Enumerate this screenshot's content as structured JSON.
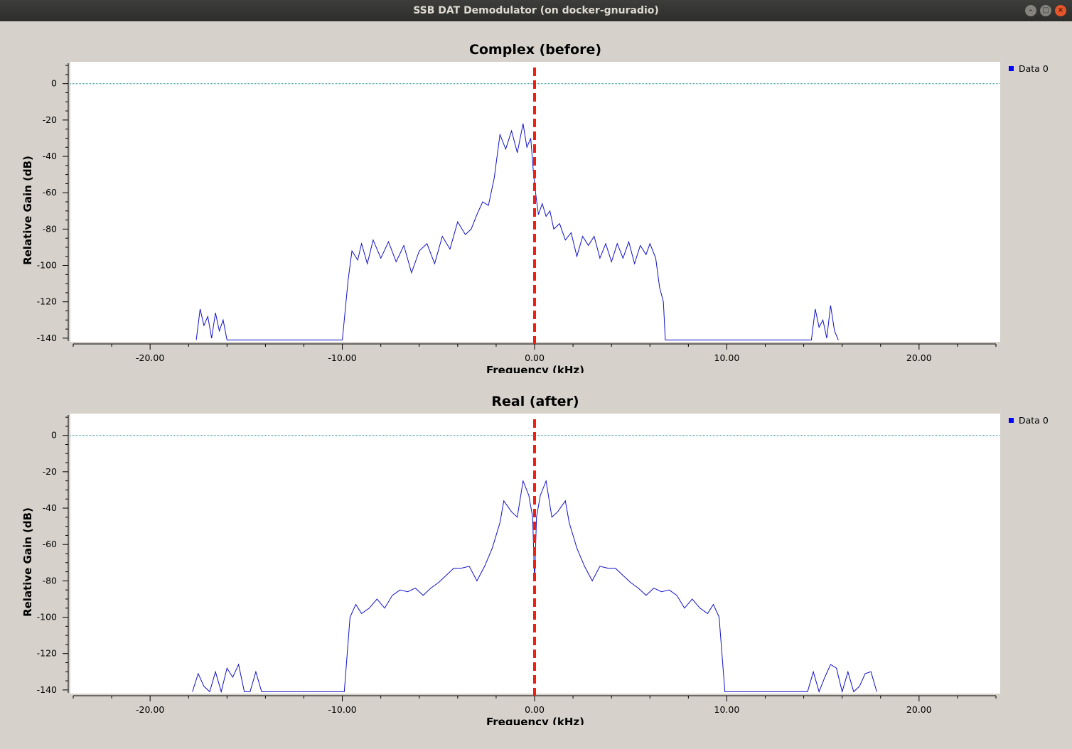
{
  "window": {
    "title": "SSB DAT Demodulator (on docker-gnuradio)",
    "controls": {
      "minimize": "–",
      "maximize": "□",
      "close": "×"
    }
  },
  "colors": {
    "trace": "#1010c8",
    "marker": "#f02010",
    "reference": "#1a8a8a",
    "legend_swatch": "#0000ff"
  },
  "chart_data": [
    {
      "type": "line",
      "title": "Complex (before)",
      "xlabel": "Frequency (kHz)",
      "ylabel": "Relative Gain (dB)",
      "xlim": [
        -24,
        24
      ],
      "ylim": [
        -142,
        12
      ],
      "xticks": [
        "-20.00",
        "-10.00",
        "0.00",
        "10.00",
        "20.00"
      ],
      "yticks": [
        "0",
        "-20",
        "-40",
        "-60",
        "-80",
        "-100",
        "-120",
        "-140"
      ],
      "legend": [
        "Data 0"
      ],
      "reference_line_db": 0,
      "marker_khz": 0,
      "series": [
        {
          "name": "Data 0",
          "x": [
            -17.6,
            -17.4,
            -17.2,
            -17.0,
            -16.8,
            -16.6,
            -16.4,
            -16.2,
            -16.0,
            -10.0,
            -9.7,
            -9.5,
            -9.2,
            -9.0,
            -8.7,
            -8.4,
            -8.0,
            -7.6,
            -7.2,
            -6.8,
            -6.4,
            -6.0,
            -5.6,
            -5.2,
            -4.8,
            -4.4,
            -4.0,
            -3.6,
            -3.3,
            -3.0,
            -2.7,
            -2.4,
            -2.1,
            -1.8,
            -1.5,
            -1.2,
            -0.9,
            -0.6,
            -0.4,
            -0.2,
            -0.05,
            0.05,
            0.2,
            0.4,
            0.6,
            0.8,
            1.0,
            1.3,
            1.6,
            1.9,
            2.2,
            2.5,
            2.8,
            3.1,
            3.4,
            3.7,
            4.0,
            4.3,
            4.6,
            4.9,
            5.2,
            5.5,
            5.8,
            6.0,
            6.3,
            6.5,
            6.7,
            6.8,
            14.4,
            14.6,
            14.8,
            15.0,
            15.2,
            15.4,
            15.6,
            15.8
          ],
          "y": [
            -141,
            -124,
            -133,
            -128,
            -140,
            -126,
            -136,
            -130,
            -141,
            -141,
            -108,
            -92,
            -97,
            -88,
            -99,
            -86,
            -96,
            -87,
            -98,
            -89,
            -104,
            -92,
            -88,
            -99,
            -84,
            -91,
            -76,
            -83,
            -80,
            -72,
            -65,
            -67,
            -52,
            -28,
            -36,
            -26,
            -38,
            -22,
            -35,
            -30,
            -50,
            -60,
            -72,
            -66,
            -73,
            -70,
            -80,
            -77,
            -86,
            -82,
            -95,
            -84,
            -89,
            -84,
            -96,
            -88,
            -98,
            -88,
            -96,
            -87,
            -99,
            -89,
            -94,
            -88,
            -96,
            -112,
            -120,
            -141,
            -141,
            -124,
            -134,
            -130,
            -140,
            -122,
            -136,
            -141
          ]
        }
      ]
    },
    {
      "type": "line",
      "title": "Real (after)",
      "xlabel": "Frequency (kHz)",
      "ylabel": "Relative Gain (dB)",
      "xlim": [
        -24,
        24
      ],
      "ylim": [
        -142,
        12
      ],
      "xticks": [
        "-20.00",
        "-10.00",
        "0.00",
        "10.00",
        "20.00"
      ],
      "yticks": [
        "0",
        "-20",
        "-40",
        "-60",
        "-80",
        "-100",
        "-120",
        "-140"
      ],
      "legend": [
        "Data 0"
      ],
      "reference_line_db": 0,
      "marker_khz": 0,
      "series": [
        {
          "name": "Data 0",
          "x": [
            -17.8,
            -17.5,
            -17.2,
            -16.9,
            -16.6,
            -16.3,
            -16.0,
            -15.7,
            -15.4,
            -15.1,
            -14.8,
            -14.5,
            -14.2,
            -9.9,
            -9.6,
            -9.3,
            -9.0,
            -8.6,
            -8.2,
            -7.8,
            -7.4,
            -7.0,
            -6.6,
            -6.2,
            -5.8,
            -5.4,
            -5.0,
            -4.6,
            -4.2,
            -3.8,
            -3.4,
            -3.0,
            -2.6,
            -2.2,
            -1.8,
            -1.6,
            -1.2,
            -0.9,
            -0.6,
            -0.3,
            -0.1,
            0.0,
            0.1,
            0.3,
            0.6,
            0.9,
            1.2,
            1.6,
            1.8,
            2.2,
            2.6,
            3.0,
            3.4,
            3.8,
            4.2,
            4.6,
            5.0,
            5.4,
            5.8,
            6.2,
            6.6,
            7.0,
            7.4,
            7.8,
            8.2,
            8.6,
            9.0,
            9.3,
            9.6,
            9.9,
            14.2,
            14.5,
            14.8,
            15.1,
            15.4,
            15.7,
            16.0,
            16.3,
            16.6,
            16.9,
            17.2,
            17.5,
            17.8
          ],
          "y": [
            -141,
            -131,
            -138,
            -141,
            -130,
            -141,
            -128,
            -133,
            -126,
            -141,
            -141,
            -130,
            -141,
            -141,
            -100,
            -93,
            -98,
            -95,
            -90,
            -95,
            -88,
            -85,
            -86,
            -84,
            -88,
            -84,
            -81,
            -77,
            -73,
            -73,
            -72,
            -80,
            -72,
            -62,
            -48,
            -36,
            -42,
            -45,
            -25,
            -33,
            -45,
            -80,
            -45,
            -33,
            -25,
            -45,
            -42,
            -36,
            -48,
            -62,
            -72,
            -80,
            -72,
            -73,
            -73,
            -77,
            -81,
            -84,
            -88,
            -84,
            -86,
            -85,
            -88,
            -95,
            -90,
            -95,
            -98,
            -93,
            -100,
            -141,
            -141,
            -130,
            -141,
            -133,
            -126,
            -128,
            -141,
            -130,
            -141,
            -138,
            -131,
            -130,
            -141
          ]
        }
      ]
    }
  ]
}
